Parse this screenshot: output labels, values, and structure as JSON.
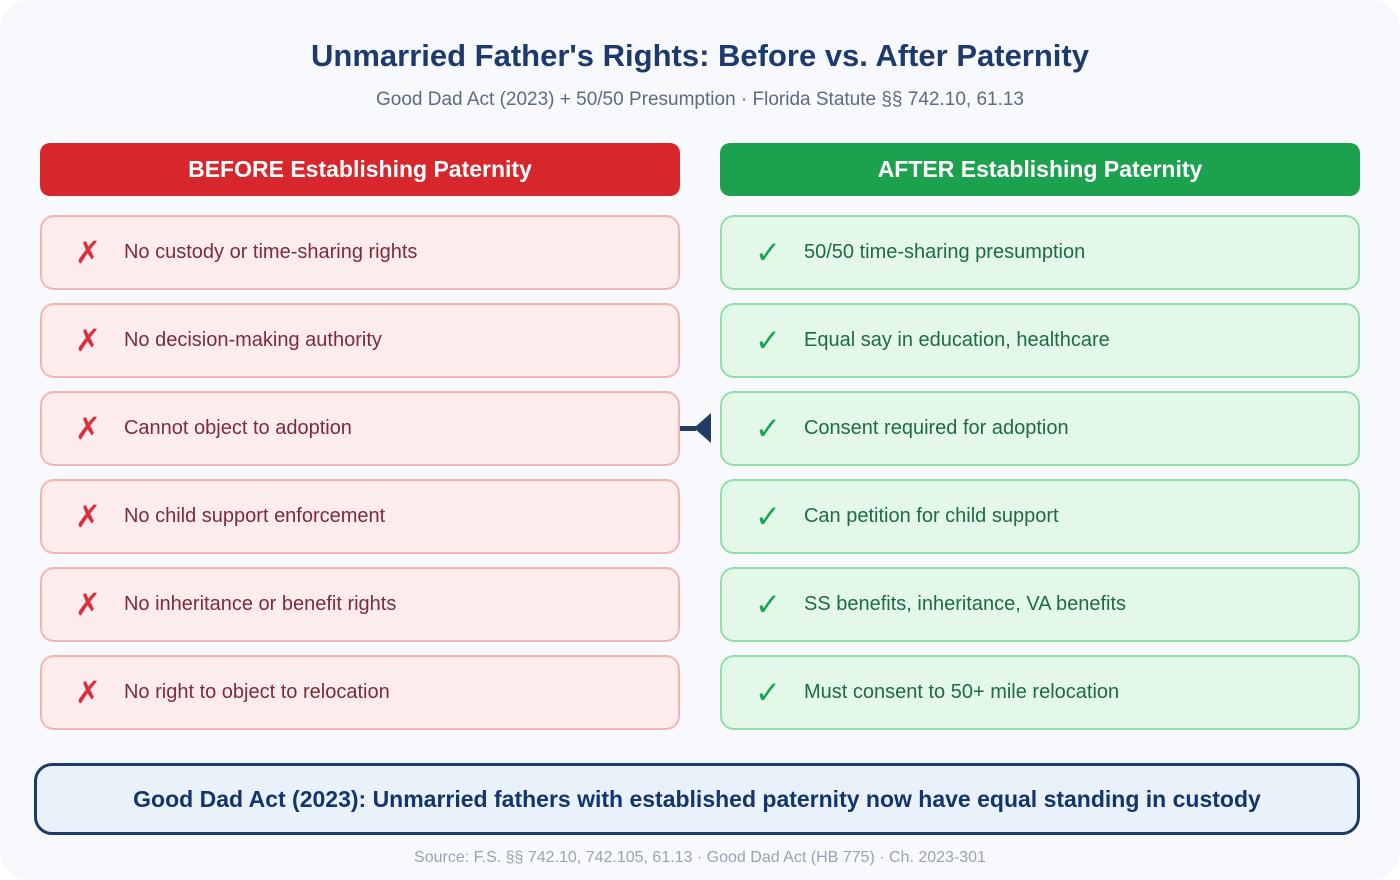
{
  "page": {
    "title": "Unmarried Father's Rights: Before vs. After Paternity",
    "subtitle": "Good Dad Act (2023) + 50/50 Presumption · Florida Statute §§ 742.10, 61.13"
  },
  "columns": {
    "before": {
      "header": "BEFORE Establishing Paternity",
      "icon_name": "x-icon",
      "icon": "✗",
      "items": [
        "No custody or time-sharing rights",
        "No decision-making authority",
        "Cannot object to adoption",
        "No child support enforcement",
        "No inheritance or benefit rights",
        "No right to object to relocation"
      ]
    },
    "after": {
      "header": "AFTER Establishing Paternity",
      "icon_name": "check-icon",
      "icon": "✓",
      "items": [
        "50/50 time-sharing presumption",
        "Equal say in education, healthcare",
        "Consent required for adoption",
        "Can petition for child support",
        "SS benefits, inheritance, VA benefits",
        "Must consent to 50+ mile relocation"
      ]
    }
  },
  "connector": {
    "between_row_index": 2,
    "shape": "left-pointing-arrow"
  },
  "banner": {
    "text": "Good Dad Act (2023): Unmarried fathers with established paternity now have equal standing in custody"
  },
  "footer": {
    "source": "Source: F.S. §§ 742.10, 742.105, 61.13 · Good Dad Act (HB 775) · Ch. 2023-301"
  },
  "colors": {
    "card-bg": "#f7f9fc",
    "title-navy": "#1d3a6e",
    "subtitle-gray": "#5c6b80",
    "before-red": "#d7262c",
    "after-green": "#1ca24e",
    "before-item-bg": "#fdecec",
    "before-item-border": "#f4b4b4",
    "before-item-text": "#7c2b3a",
    "x-red": "#dd2f3f",
    "after-item-bg": "#e4f8ea",
    "after-item-border": "#90dfa9",
    "after-item-text": "#1e6b41",
    "check-green": "#1aa24e",
    "arrow-navy": "#203c63",
    "banner-bg": "#e9f1fb",
    "banner-border": "#1e3a66",
    "banner-text": "#12356b",
    "footer-gray": "#9aa2b1"
  }
}
